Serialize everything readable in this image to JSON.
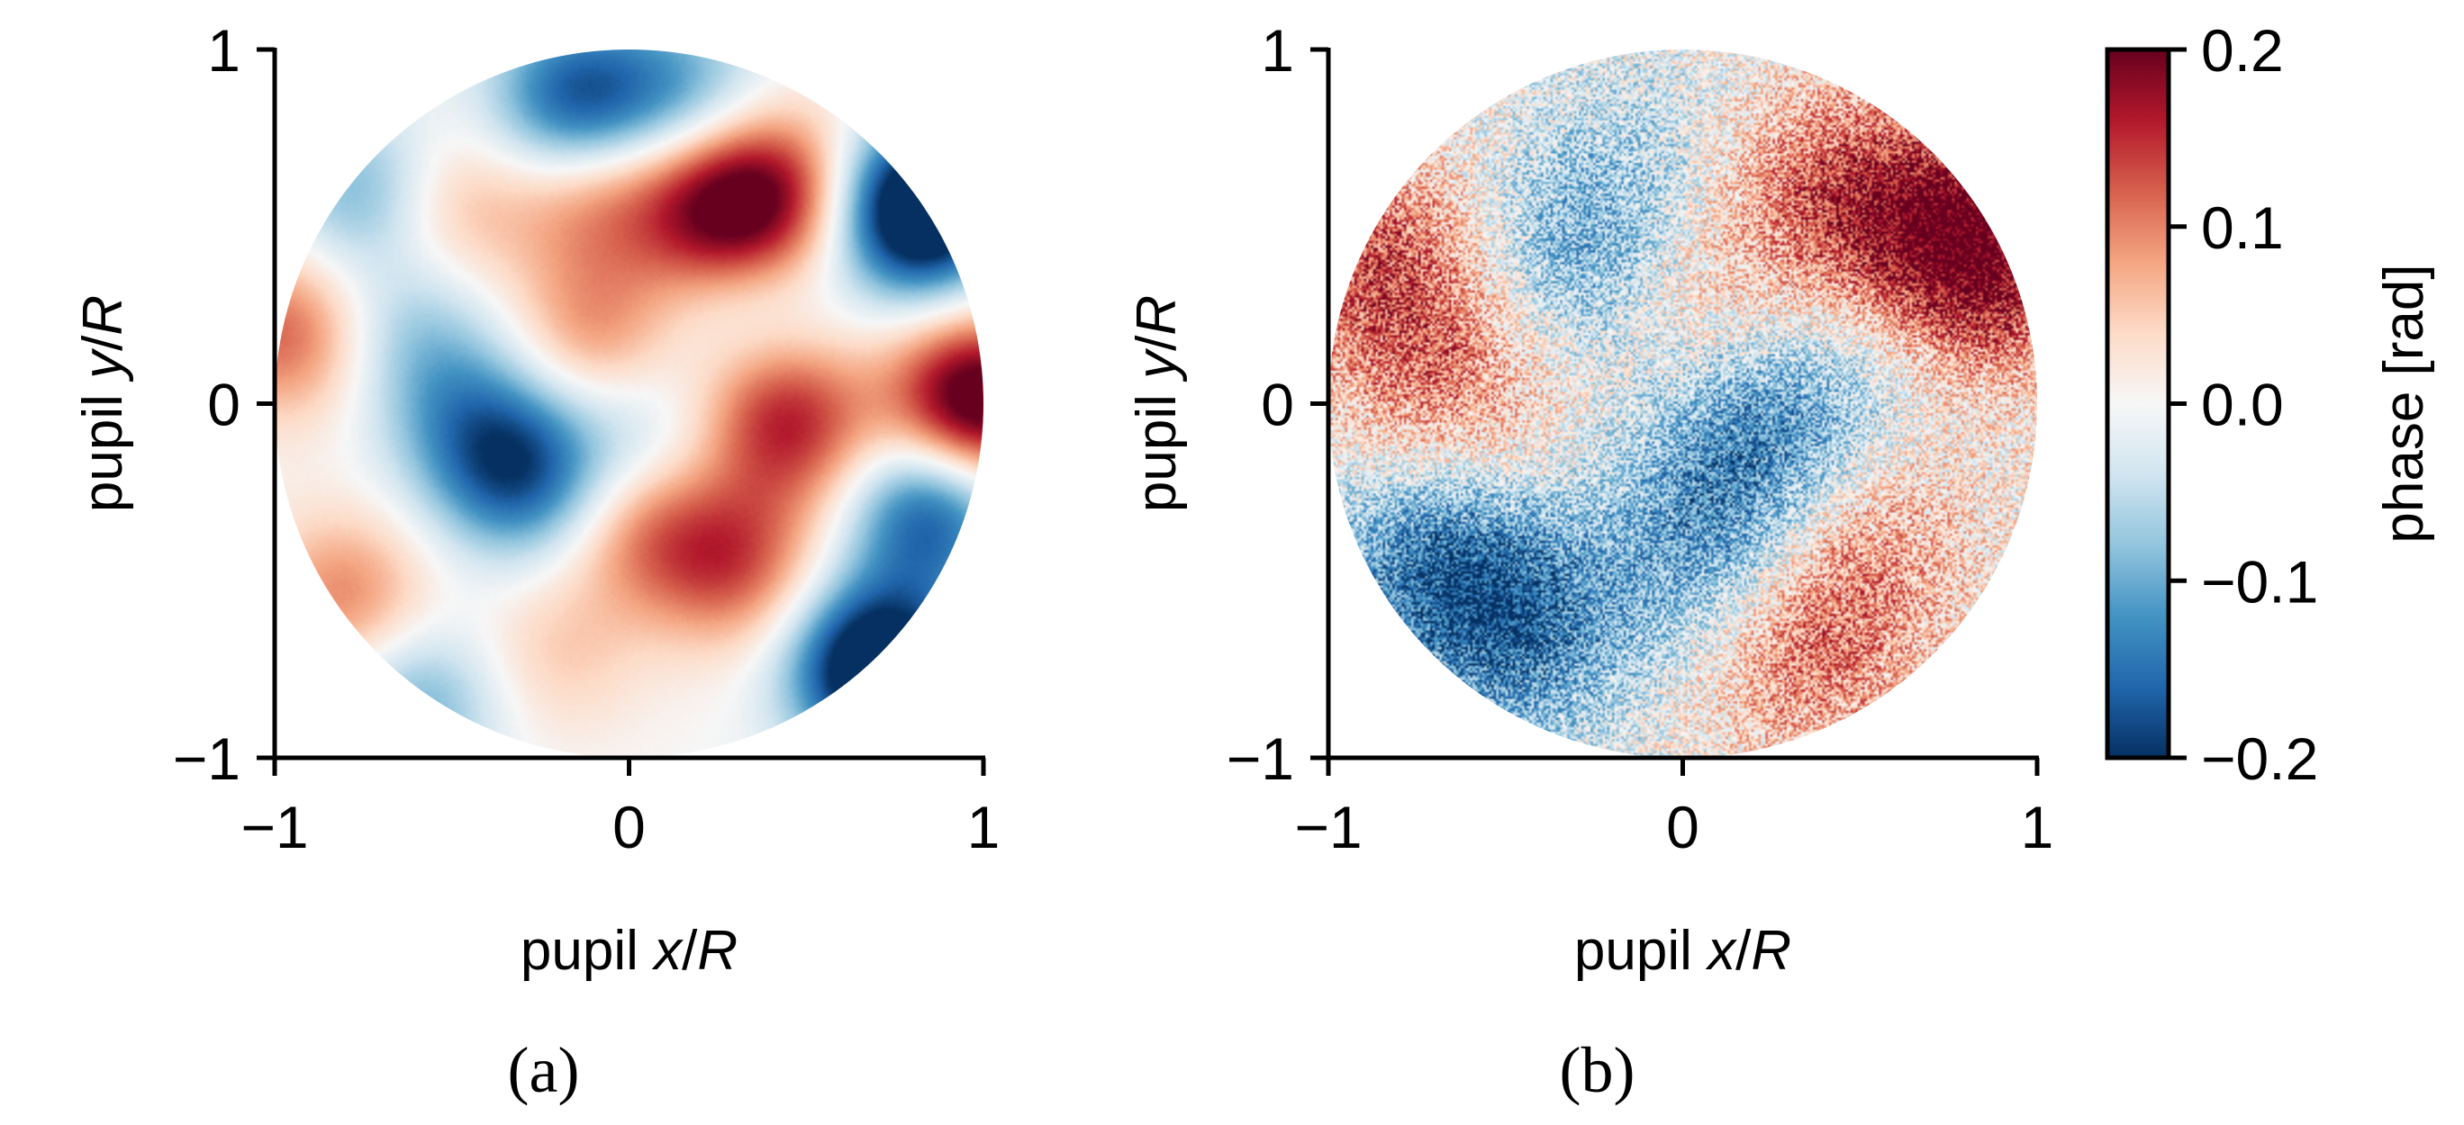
{
  "chart_data": [
    {
      "type": "heatmap",
      "panel_label": "(a)",
      "xlabel": "pupil x/R",
      "ylabel": "pupil y/R",
      "xlabel_parts": [
        "pupil ",
        "x",
        "/",
        "R"
      ],
      "ylabel_parts": [
        "pupil ",
        "y",
        "/",
        "R"
      ],
      "xlim": [
        -1,
        1
      ],
      "ylim": [
        -1,
        1
      ],
      "xticks": [
        -1,
        0,
        1
      ],
      "yticks": [
        -1,
        0,
        1
      ],
      "xtick_labels": [
        "−1",
        "0",
        "1"
      ],
      "ytick_labels": [
        "−1",
        "0",
        "1"
      ],
      "aperture": "circular pupil, radius 1",
      "texture": "smooth",
      "features": [
        {
          "x": 0.25,
          "y": 0.55,
          "value": 0.18
        },
        {
          "x": 0.45,
          "y": 0.6,
          "value": 0.12
        },
        {
          "x": -0.1,
          "y": 0.6,
          "value": 0.1
        },
        {
          "x": -0.5,
          "y": 0.55,
          "value": 0.07
        },
        {
          "x": -0.1,
          "y": 0.2,
          "value": 0.09
        },
        {
          "x": 0.4,
          "y": 0.0,
          "value": 0.1
        },
        {
          "x": 0.05,
          "y": -0.35,
          "value": 0.1
        },
        {
          "x": 0.3,
          "y": -0.45,
          "value": 0.12
        },
        {
          "x": 0.5,
          "y": -0.1,
          "value": 0.08
        },
        {
          "x": -0.8,
          "y": -0.55,
          "value": 0.1
        },
        {
          "x": -0.2,
          "y": -0.7,
          "value": 0.05
        },
        {
          "x": 0.98,
          "y": 0.0,
          "value": 0.25
        },
        {
          "x": -0.97,
          "y": 0.2,
          "value": 0.12
        },
        {
          "x": -0.3,
          "y": -0.2,
          "value": -0.16
        },
        {
          "x": -0.45,
          "y": -0.05,
          "value": -0.09
        },
        {
          "x": -0.15,
          "y": 0.85,
          "value": -0.18
        },
        {
          "x": 0.15,
          "y": 0.88,
          "value": -0.1
        },
        {
          "x": 0.82,
          "y": 0.55,
          "value": -0.3
        },
        {
          "x": 0.85,
          "y": -0.3,
          "value": -0.18
        },
        {
          "x": 0.7,
          "y": -0.75,
          "value": -0.28
        },
        {
          "x": -0.6,
          "y": 0.2,
          "value": -0.07
        },
        {
          "x": 0.05,
          "y": -0.1,
          "value": -0.06
        },
        {
          "x": -0.6,
          "y": -0.85,
          "value": -0.1
        },
        {
          "x": 0.35,
          "y": 0.25,
          "value": -0.05
        },
        {
          "x": -0.75,
          "y": 0.6,
          "value": -0.1
        }
      ],
      "seed": 7
    },
    {
      "type": "heatmap",
      "panel_label": "(b)",
      "xlabel": "pupil x/R",
      "ylabel": "pupil y/R",
      "xlabel_parts": [
        "pupil ",
        "x",
        "/",
        "R"
      ],
      "ylabel_parts": [
        "pupil ",
        "y",
        "/",
        "R"
      ],
      "xlim": [
        -1,
        1
      ],
      "ylim": [
        -1,
        1
      ],
      "xticks": [
        -1,
        0,
        1
      ],
      "yticks": [
        -1,
        0,
        1
      ],
      "xtick_labels": [
        "−1",
        "0",
        "1"
      ],
      "ytick_labels": [
        "−1",
        "0",
        "1"
      ],
      "aperture": "circular pupil, radius 1",
      "texture": "speckled",
      "features": [
        {
          "x": 0.75,
          "y": 0.5,
          "value": 0.15
        },
        {
          "x": 0.9,
          "y": 0.35,
          "value": 0.1
        },
        {
          "x": 0.4,
          "y": 0.6,
          "value": 0.1
        },
        {
          "x": -0.85,
          "y": 0.4,
          "value": 0.12
        },
        {
          "x": -0.65,
          "y": 0.05,
          "value": 0.09
        },
        {
          "x": 0.5,
          "y": -0.35,
          "value": 0.08
        },
        {
          "x": 0.35,
          "y": -0.7,
          "value": 0.1
        },
        {
          "x": 0.0,
          "y": 0.3,
          "value": 0.05
        },
        {
          "x": -0.3,
          "y": 0.4,
          "value": -0.1
        },
        {
          "x": -0.7,
          "y": -0.45,
          "value": -0.13
        },
        {
          "x": -0.45,
          "y": -0.65,
          "value": -0.12
        },
        {
          "x": 0.2,
          "y": -0.15,
          "value": -0.12
        },
        {
          "x": 0.05,
          "y": -0.45,
          "value": -0.08
        },
        {
          "x": 0.45,
          "y": 0.05,
          "value": -0.05
        },
        {
          "x": -0.1,
          "y": 0.7,
          "value": -0.04
        }
      ],
      "seed": 21
    }
  ],
  "colorbar": {
    "label": "phase [rad]",
    "min": -0.2,
    "max": 0.2,
    "colormap": "RdBu_r",
    "ticks": [
      0.2,
      0.1,
      0.0,
      -0.1,
      -0.2
    ],
    "tick_labels": [
      "0.2",
      "0.1",
      "0.0",
      "−0.1",
      "−0.2"
    ]
  },
  "colors": {
    "max": "#67001f",
    "high": "#d6604d",
    "mid": "#f7f7f7",
    "low": "#4393c3",
    "min": "#053061"
  }
}
